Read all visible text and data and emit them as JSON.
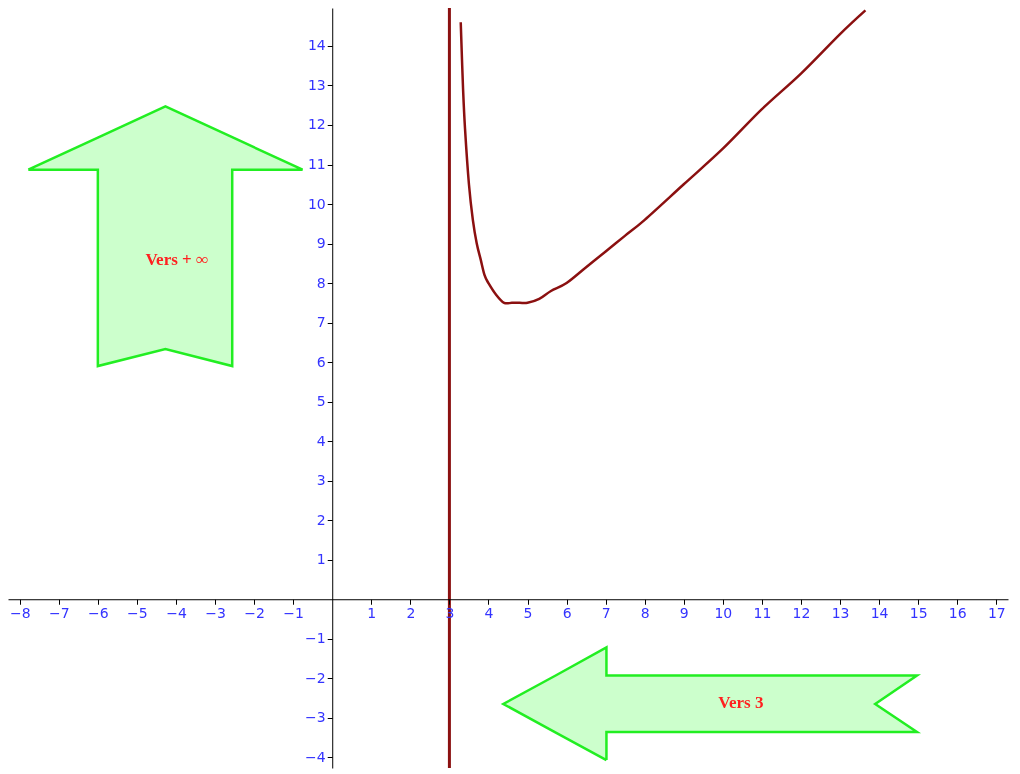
{
  "chart_data": {
    "type": "line",
    "series": [
      {
        "color": "#8b1010",
        "x": [
          3.29,
          3.3,
          3.35,
          3.4,
          3.5,
          3.6,
          3.7,
          3.8,
          3.9,
          4.0,
          4.2,
          4.4,
          4.6,
          4.8,
          5.0,
          5.3,
          5.6,
          6,
          6.5,
          7,
          7.5,
          8,
          9,
          10,
          11,
          12,
          13,
          13.65
        ],
        "values": [
          14.6,
          14.3,
          12.9,
          11.9,
          10.5,
          9.6,
          9.0,
          8.6,
          8.2,
          8.0,
          7.7,
          7.5,
          7.5,
          7.5,
          7.5,
          7.6,
          7.8,
          8.0,
          8.4,
          8.8,
          9.2,
          9.6,
          10.5,
          11.4,
          12.4,
          13.3,
          14.3,
          14.9
        ]
      }
    ],
    "xlim": [
      -8.3,
      17.3
    ],
    "ylim": [
      -4.27,
      14.96
    ],
    "xticks": [
      -8,
      -7,
      -6,
      -5,
      -4,
      -3,
      -2,
      -1,
      1,
      2,
      3,
      4,
      5,
      6,
      7,
      8,
      9,
      10,
      11,
      12,
      13,
      14,
      15,
      16,
      17
    ],
    "yticks": [
      -4,
      -3,
      -2,
      -1,
      1,
      2,
      3,
      4,
      5,
      6,
      7,
      8,
      9,
      10,
      11,
      12,
      13,
      14
    ],
    "ref_lines": [
      {
        "axis": "x",
        "value": 3,
        "color": "#8b1010"
      }
    ],
    "annotations": [
      "Vers + ∞",
      "Vers 3"
    ],
    "grid": false
  }
}
